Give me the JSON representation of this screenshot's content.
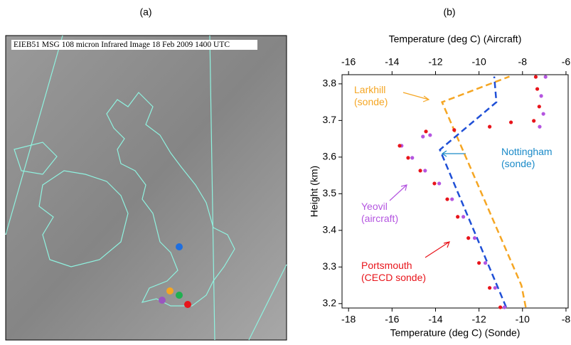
{
  "panel_a": {
    "label": "(a)",
    "caption": "EIEB51 MSG 108 micron Infrared Image 18 Feb 2009 1400 UTC"
  },
  "chart_data": {
    "type": "line",
    "label": "(b)",
    "xlabel": "Temperature (deg C) (Sonde)",
    "x2label": "Temperature (deg C) (Aircraft)",
    "ylabel": "Height (km)",
    "xlim": [
      -18.3,
      -7.9
    ],
    "xticks": [
      -18,
      -16,
      -14,
      -12,
      -10,
      -8
    ],
    "x2lim": [
      -16.3,
      -5.9
    ],
    "x2ticks": [
      -16,
      -14,
      -12,
      -10,
      -8,
      -6
    ],
    "ylim": [
      3.188,
      3.825
    ],
    "yticks": [
      3.2,
      3.3,
      3.4,
      3.5,
      3.6,
      3.7,
      3.8
    ],
    "series": [
      {
        "name": "Larkhill (sonde)",
        "color": "#f5a623",
        "style": "dashed",
        "x": [
          -9.85,
          -10.05,
          -13.7,
          -10.6
        ],
        "values": [
          3.19,
          3.25,
          3.75,
          3.82
        ]
      },
      {
        "name": "Nottingham (sonde)",
        "color": "#1f4fd6",
        "style": "dashed",
        "x": [
          -10.75,
          -13.8,
          -11.2,
          -11.3
        ],
        "values": [
          3.19,
          3.62,
          3.75,
          3.82
        ]
      },
      {
        "name": "Yeovil (aircraft)",
        "color": "#b455e0",
        "style": "dots",
        "axis": "x2",
        "x": [
          -8.83,
          -9.26,
          -9.71,
          -10.2,
          -10.72,
          -11.24,
          -11.83,
          -12.48,
          -13.07,
          -13.56,
          -12.58,
          -12.25,
          -7.21,
          -7.04,
          -7.14,
          -6.94
        ],
        "values": [
          3.19,
          3.243,
          3.311,
          3.379,
          3.437,
          3.485,
          3.528,
          3.563,
          3.598,
          3.631,
          3.656,
          3.66,
          3.683,
          3.718,
          3.767,
          3.819
        ]
      },
      {
        "name": "Portsmouth (CECD sonde)",
        "color": "#e8141b",
        "style": "dots",
        "x": [
          -11.02,
          -11.51,
          -12.0,
          -12.49,
          -12.98,
          -13.46,
          -14.05,
          -14.7,
          -15.26,
          -15.65,
          -14.44,
          -13.14,
          -11.51,
          -10.53,
          -9.48,
          -9.23,
          -9.32,
          -9.39
        ],
        "values": [
          3.19,
          3.243,
          3.311,
          3.379,
          3.437,
          3.485,
          3.528,
          3.563,
          3.598,
          3.631,
          3.67,
          3.674,
          3.683,
          3.695,
          3.699,
          3.738,
          3.786,
          3.819
        ]
      }
    ]
  }
}
